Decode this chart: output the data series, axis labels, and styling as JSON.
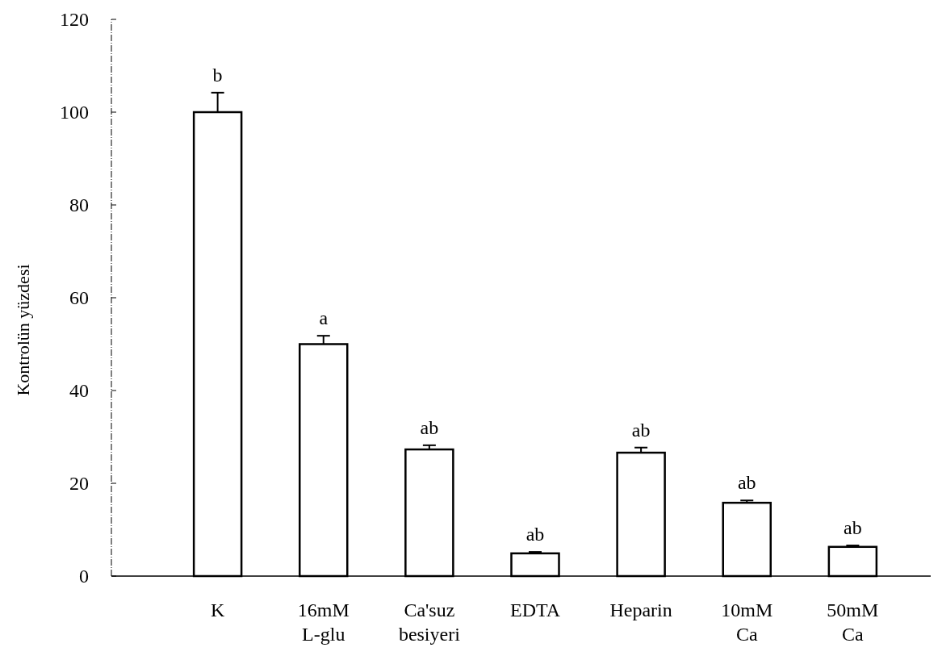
{
  "chart_data": {
    "type": "bar",
    "ylabel": "Kontrolün yüzdesi",
    "categories": [
      "K",
      "16mM\nL-glu",
      "Ca'suz\nbesiyeri",
      "EDTA",
      "Heparin",
      "10mM\nCa",
      "50mM\nCa"
    ],
    "values": [
      100,
      50,
      27.3,
      4.9,
      26.6,
      15.8,
      6.3
    ],
    "errors": [
      4.2,
      1.8,
      0.9,
      0.3,
      1.1,
      0.5,
      0.3
    ],
    "color": "#ffffff",
    "ylim": [
      0,
      120
    ],
    "yticks": [
      0,
      20,
      40,
      60,
      80,
      100,
      120
    ],
    "annotations": [
      {
        "text": "b",
        "x": "K",
        "y": 104.2
      },
      {
        "text": "a",
        "x": "16mM\nL-glu",
        "y": 51.8
      },
      {
        "text": "ab",
        "x": "Ca'suz\nbesiyeri",
        "y": 28.2
      },
      {
        "text": "ab",
        "x": "EDTA",
        "y": 5.2
      },
      {
        "text": "ab",
        "x": "Heparin",
        "y": 27.7
      },
      {
        "text": "ab",
        "x": "10mM\nCa",
        "y": 16.3
      },
      {
        "text": "ab",
        "x": "50mM\nCa",
        "y": 6.6
      }
    ]
  }
}
